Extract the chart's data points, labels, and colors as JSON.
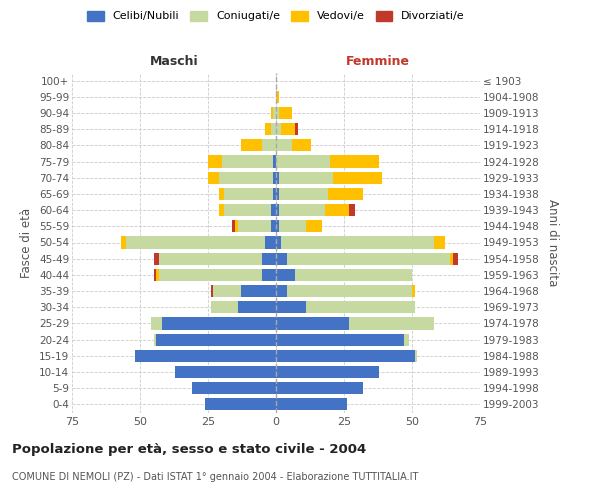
{
  "age_groups": [
    "0-4",
    "5-9",
    "10-14",
    "15-19",
    "20-24",
    "25-29",
    "30-34",
    "35-39",
    "40-44",
    "45-49",
    "50-54",
    "55-59",
    "60-64",
    "65-69",
    "70-74",
    "75-79",
    "80-84",
    "85-89",
    "90-94",
    "95-99",
    "100+"
  ],
  "birth_years": [
    "1999-2003",
    "1994-1998",
    "1989-1993",
    "1984-1988",
    "1979-1983",
    "1974-1978",
    "1969-1973",
    "1964-1968",
    "1959-1963",
    "1954-1958",
    "1949-1953",
    "1944-1948",
    "1939-1943",
    "1934-1938",
    "1929-1933",
    "1924-1928",
    "1919-1923",
    "1914-1918",
    "1909-1913",
    "1904-1908",
    "≤ 1903"
  ],
  "males": {
    "celibe": [
      26,
      31,
      37,
      52,
      44,
      42,
      14,
      13,
      5,
      5,
      4,
      2,
      2,
      1,
      1,
      1,
      0,
      0,
      0,
      0,
      0
    ],
    "coniugato": [
      0,
      0,
      0,
      0,
      1,
      4,
      10,
      10,
      38,
      38,
      51,
      12,
      17,
      18,
      20,
      19,
      5,
      2,
      1,
      0,
      0
    ],
    "vedovo": [
      0,
      0,
      0,
      0,
      0,
      0,
      0,
      0,
      1,
      0,
      2,
      1,
      2,
      2,
      4,
      5,
      8,
      2,
      1,
      0,
      0
    ],
    "divorziato": [
      0,
      0,
      0,
      0,
      0,
      0,
      0,
      1,
      1,
      2,
      0,
      1,
      0,
      0,
      0,
      0,
      0,
      0,
      0,
      0,
      0
    ]
  },
  "females": {
    "nubile": [
      26,
      32,
      38,
      51,
      47,
      27,
      11,
      4,
      7,
      4,
      2,
      1,
      1,
      1,
      1,
      0,
      0,
      0,
      0,
      0,
      0
    ],
    "coniugata": [
      0,
      0,
      0,
      1,
      2,
      31,
      40,
      46,
      43,
      60,
      56,
      10,
      17,
      18,
      20,
      20,
      6,
      2,
      1,
      0,
      0
    ],
    "vedova": [
      0,
      0,
      0,
      0,
      0,
      0,
      0,
      1,
      0,
      1,
      4,
      6,
      9,
      13,
      18,
      18,
      7,
      5,
      5,
      1,
      0
    ],
    "divorziata": [
      0,
      0,
      0,
      0,
      0,
      0,
      0,
      0,
      0,
      2,
      0,
      0,
      2,
      0,
      0,
      0,
      0,
      1,
      0,
      0,
      0
    ]
  },
  "color_celibe": "#4472c4",
  "color_coniugato": "#c5d9a0",
  "color_vedovo": "#ffc000",
  "color_divorziato": "#c0392b",
  "title": "Popolazione per età, sesso e stato civile - 2004",
  "subtitle": "COMUNE DI NEMOLI (PZ) - Dati ISTAT 1° gennaio 2004 - Elaborazione TUTTITALIA.IT",
  "label_maschi": "Maschi",
  "label_femmine": "Femmine",
  "ylabel_left": "Fasce di età",
  "ylabel_right": "Anni di nascita",
  "legend_labels": [
    "Celibi/Nubili",
    "Coniugati/e",
    "Vedovi/e",
    "Divorziati/e"
  ],
  "xlim": 75,
  "bg_color": "#ffffff",
  "grid_color": "#cccccc",
  "femmine_title_color": "#c0392b",
  "maschi_title_color": "#333333"
}
